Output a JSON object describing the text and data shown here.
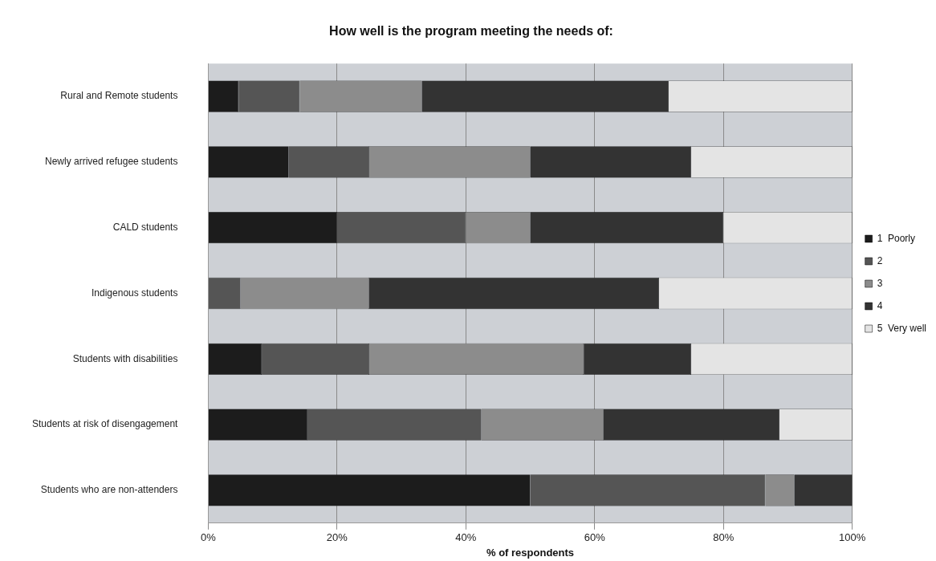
{
  "chart_data": {
    "type": "bar",
    "orientation": "horizontal",
    "stacked": true,
    "title": "How well is the program meeting the needs of:",
    "xlabel": "% of respondents",
    "categories": [
      "Rural and Remote students",
      "Newly arrived refugee students",
      "CALD students",
      "Indigenous students",
      "Students with disabilities",
      "Students at risk of disengagement",
      "Students who are non-attenders"
    ],
    "series": [
      {
        "name": "1  Poorly",
        "color": "#1c1c1c",
        "values": [
          4.7,
          12.5,
          20,
          0,
          8.3,
          15.4,
          50
        ]
      },
      {
        "name": "2",
        "color": "#555555",
        "values": [
          9.5,
          12.5,
          20,
          5,
          16.7,
          27,
          36.5
        ]
      },
      {
        "name": "3",
        "color": "#8c8c8c",
        "values": [
          19,
          25,
          10,
          20,
          33.3,
          19,
          4.5
        ]
      },
      {
        "name": "4",
        "color": "#333333",
        "values": [
          38.3,
          25,
          30,
          45,
          16.7,
          27.3,
          9
        ]
      },
      {
        "name": "5  Very well",
        "color": "#e4e4e4",
        "values": [
          28.5,
          25,
          20,
          30,
          25,
          11.3,
          0
        ]
      }
    ],
    "xlim": [
      0,
      100
    ],
    "xticks": [
      {
        "value": 0,
        "label": "0%"
      },
      {
        "value": 20,
        "label": "20%"
      },
      {
        "value": 40,
        "label": "40%"
      },
      {
        "value": 60,
        "label": "60%"
      },
      {
        "value": 80,
        "label": "80%"
      },
      {
        "value": 100,
        "label": "100%"
      }
    ],
    "grid": "x",
    "legend": "right"
  }
}
